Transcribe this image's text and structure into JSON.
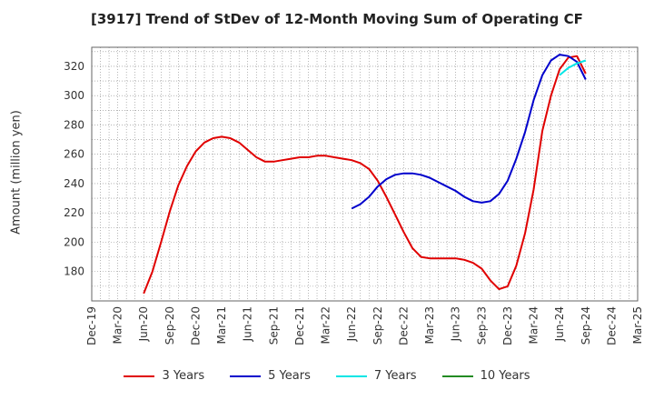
{
  "chart_data": {
    "type": "line",
    "title": "[3917]  Trend of StDev of 12-Month Moving Sum of Operating CF",
    "xlabel": "",
    "ylabel": "Amount (million yen)",
    "ylim": [
      160,
      333
    ],
    "yticks": [
      180,
      200,
      220,
      240,
      260,
      280,
      300,
      320
    ],
    "x_tick_labels": [
      "Dec-19",
      "Mar-20",
      "Jun-20",
      "Sep-20",
      "Dec-20",
      "Mar-21",
      "Jun-21",
      "Sep-21",
      "Dec-21",
      "Mar-22",
      "Jun-22",
      "Sep-22",
      "Dec-22",
      "Mar-23",
      "Jun-23",
      "Sep-23",
      "Dec-23",
      "Mar-24",
      "Jun-24",
      "Sep-24",
      "Dec-24",
      "Mar-25"
    ],
    "grid": true,
    "legend_position": "bottom",
    "series": [
      {
        "name": "3 Years",
        "color": "#e00000",
        "x": [
          "Jun-20",
          "Jul-20",
          "Aug-20",
          "Sep-20",
          "Oct-20",
          "Nov-20",
          "Dec-20",
          "Jan-21",
          "Feb-21",
          "Mar-21",
          "Apr-21",
          "May-21",
          "Jun-21",
          "Jul-21",
          "Aug-21",
          "Sep-21",
          "Oct-21",
          "Nov-21",
          "Dec-21",
          "Jan-22",
          "Feb-22",
          "Mar-22",
          "Apr-22",
          "May-22",
          "Jun-22",
          "Jul-22",
          "Aug-22",
          "Sep-22",
          "Oct-22",
          "Nov-22",
          "Dec-22",
          "Jan-23",
          "Feb-23",
          "Mar-23",
          "Apr-23",
          "May-23",
          "Jun-23",
          "Jul-23",
          "Aug-23",
          "Sep-23",
          "Oct-23",
          "Nov-23",
          "Dec-23",
          "Jan-24",
          "Feb-24",
          "Mar-24",
          "Apr-24",
          "May-24",
          "Jun-24",
          "Jul-24",
          "Aug-24",
          "Sep-24"
        ],
        "values": [
          165,
          180,
          200,
          221,
          239,
          252,
          262,
          268,
          271,
          272,
          271,
          268,
          263,
          258,
          255,
          255,
          256,
          257,
          258,
          258,
          259,
          259,
          258,
          257,
          256,
          254,
          250,
          242,
          231,
          219,
          207,
          196,
          190,
          189,
          189,
          189,
          189,
          188,
          186,
          182,
          174,
          168,
          170,
          184,
          206,
          236,
          276,
          300,
          318,
          326,
          327,
          315
        ]
      },
      {
        "name": "5 Years",
        "color": "#0000cc",
        "x": [
          "Jun-22",
          "Jul-22",
          "Aug-22",
          "Sep-22",
          "Oct-22",
          "Nov-22",
          "Dec-22",
          "Jan-23",
          "Feb-23",
          "Mar-23",
          "Apr-23",
          "May-23",
          "Jun-23",
          "Jul-23",
          "Aug-23",
          "Sep-23",
          "Oct-23",
          "Nov-23",
          "Dec-23",
          "Jan-24",
          "Feb-24",
          "Mar-24",
          "Apr-24",
          "May-24",
          "Jun-24",
          "Jul-24",
          "Aug-24",
          "Sep-24"
        ],
        "values": [
          223,
          226,
          231,
          238,
          243,
          246,
          247,
          247,
          246,
          244,
          241,
          238,
          235,
          231,
          228,
          227,
          228,
          233,
          242,
          257,
          275,
          297,
          314,
          324,
          328,
          327,
          323,
          311
        ]
      },
      {
        "name": "7 Years",
        "color": "#00e5e5",
        "x": [
          "Jun-24",
          "Jul-24",
          "Aug-24",
          "Sep-24"
        ],
        "values": [
          314,
          319,
          322,
          324
        ]
      },
      {
        "name": "10 Years",
        "color": "#228b22",
        "x": [],
        "values": []
      }
    ]
  }
}
